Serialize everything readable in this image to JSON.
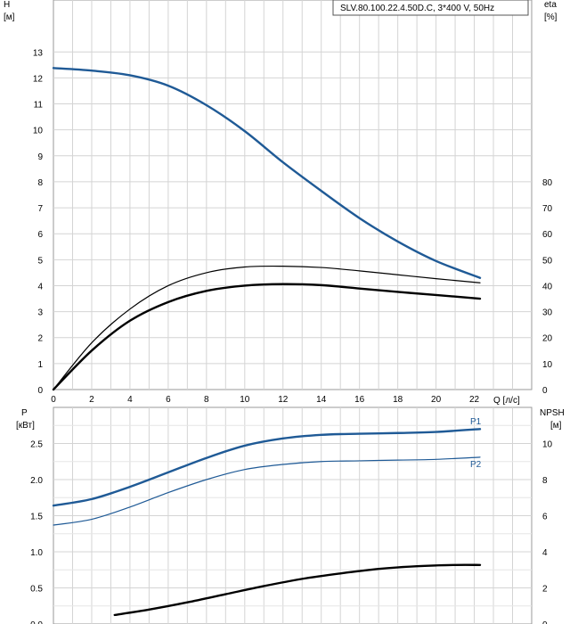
{
  "chart_data": [
    {
      "type": "line",
      "panel": "top",
      "legend": "SLV.80.100.22.4.50D.C, 3*400 V, 50Hz",
      "x_axis": {
        "title": "Q [л/с]",
        "range": [
          0,
          25
        ],
        "ticks": [
          0,
          2,
          4,
          6,
          8,
          10,
          12,
          14,
          16,
          18,
          20,
          22
        ]
      },
      "y_left": {
        "title": "H",
        "unit": "[м]",
        "range": [
          0,
          15
        ],
        "ticks": [
          0,
          1,
          2,
          3,
          4,
          5,
          6,
          7,
          8,
          9,
          10,
          11,
          12,
          13
        ]
      },
      "y_right": {
        "title": "eta",
        "unit": "[%]",
        "range": [
          0,
          150
        ],
        "ticks": [
          0,
          10,
          20,
          30,
          40,
          50,
          60,
          70,
          80
        ]
      },
      "grid": true,
      "series": [
        {
          "axis": "left",
          "color": "#1f5a96",
          "width": 2.4,
          "x": [
            0,
            2,
            4,
            6,
            8,
            10,
            12,
            14,
            16,
            18,
            20,
            22.3
          ],
          "y": [
            12.38,
            12.28,
            12.1,
            11.7,
            10.95,
            9.95,
            8.75,
            7.65,
            6.6,
            5.7,
            4.95,
            4.3
          ]
        },
        {
          "axis": "right",
          "color": "#000000",
          "width": 1.2,
          "x": [
            0,
            2,
            4,
            6,
            8,
            10,
            12,
            14,
            16,
            18,
            20,
            22.3
          ],
          "y": [
            0,
            18,
            31,
            40,
            45,
            47.2,
            47.5,
            47,
            45.7,
            44.2,
            42.7,
            41.1
          ]
        },
        {
          "axis": "right",
          "color": "#000000",
          "width": 2.4,
          "x": [
            0,
            2,
            4,
            6,
            8,
            10,
            12,
            14,
            16,
            18,
            20,
            22.3
          ],
          "y": [
            0,
            15,
            26.5,
            33.7,
            38,
            40,
            40.6,
            40.2,
            38.9,
            37.6,
            36.4,
            35
          ]
        }
      ]
    },
    {
      "type": "line",
      "panel": "bottom",
      "x_axis": {
        "range": [
          0,
          25
        ],
        "ticks": []
      },
      "y_left": {
        "title": "P",
        "unit": "[кВт]",
        "range": [
          0,
          3.0
        ],
        "ticks": [
          "0.0",
          "0.5",
          "1.0",
          "1.5",
          "2.0",
          "2.5"
        ]
      },
      "y_right": {
        "title": "NPSH",
        "unit": "[м]",
        "range": [
          0,
          12
        ],
        "ticks": [
          0,
          2,
          4,
          6,
          8,
          10
        ]
      },
      "grid": true,
      "series": [
        {
          "name": "P1",
          "axis": "left",
          "color": "#1f5a96",
          "width": 2.4,
          "x": [
            0,
            2,
            4,
            6,
            8,
            10,
            12,
            14,
            16,
            18,
            20,
            22.3
          ],
          "y": [
            1.64,
            1.73,
            1.9,
            2.1,
            2.3,
            2.47,
            2.57,
            2.62,
            2.635,
            2.645,
            2.66,
            2.7
          ]
        },
        {
          "name": "P2",
          "axis": "left",
          "color": "#1f5a96",
          "width": 1.2,
          "x": [
            0,
            2,
            4,
            6,
            8,
            10,
            12,
            14,
            16,
            18,
            20,
            22.3
          ],
          "y": [
            1.37,
            1.45,
            1.62,
            1.82,
            2.0,
            2.14,
            2.21,
            2.25,
            2.26,
            2.27,
            2.28,
            2.31
          ]
        },
        {
          "axis": "right",
          "color": "#000000",
          "width": 2.4,
          "x": [
            3.2,
            5,
            7,
            9,
            11,
            13,
            15,
            17,
            19,
            21,
            22.3
          ],
          "y": [
            0.5,
            0.8,
            1.2,
            1.65,
            2.1,
            2.5,
            2.8,
            3.05,
            3.2,
            3.27,
            3.27
          ]
        }
      ]
    }
  ]
}
